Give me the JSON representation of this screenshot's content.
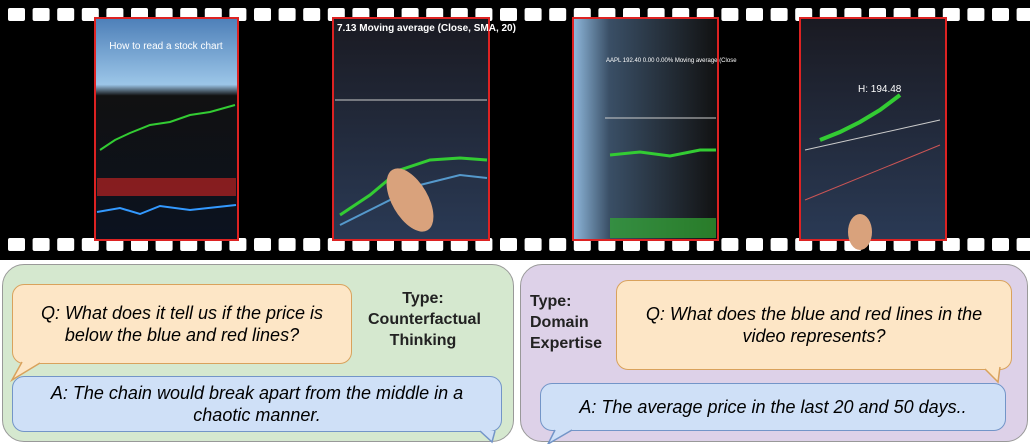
{
  "filmstrip": {
    "frames": [
      {
        "caption": "How to read a stock chart"
      },
      {
        "caption": "7.13 Moving average (Close, SMA, 20)"
      },
      {
        "caption": "AAPL 192.40 0.00 0.00% Moving average (Close"
      },
      {
        "caption": "H: 194.48"
      }
    ]
  },
  "panels": [
    {
      "type_label": "Type:",
      "type": "Counterfactual Thinking",
      "question": "Q: What does it tell us if the price is below the blue and red lines?",
      "answer": "A: The chain would break apart from the middle in a chaotic manner."
    },
    {
      "type_label": "Type:",
      "type": "Domain Expertise",
      "question": "Q: What does the blue and red lines in the video represents?",
      "answer": "A: The average price in the last 20 and 50 days.."
    }
  ]
}
